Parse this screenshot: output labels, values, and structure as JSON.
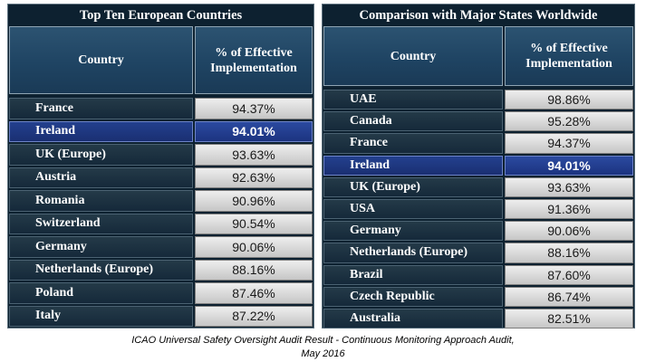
{
  "chart_data": [
    {
      "type": "table",
      "title": "Top Ten European Countries",
      "columns": [
        "Country",
        "% of Effective Implementation"
      ],
      "rows": [
        {
          "country": "France",
          "value": "94.37%"
        },
        {
          "country": "Ireland",
          "value": "94.01%",
          "highlight": true
        },
        {
          "country": "UK (Europe)",
          "value": "93.63%"
        },
        {
          "country": "Austria",
          "value": "92.63%"
        },
        {
          "country": "Romania",
          "value": "90.96%"
        },
        {
          "country": "Switzerland",
          "value": "90.54%"
        },
        {
          "country": "Germany",
          "value": "90.06%"
        },
        {
          "country": "Netherlands (Europe)",
          "value": "88.16%"
        },
        {
          "country": "Poland",
          "value": "87.46%"
        },
        {
          "country": "Italy",
          "value": "87.22%"
        }
      ],
      "highlight_color": "#1f3a8a"
    },
    {
      "type": "table",
      "title": "Comparison with Major States Worldwide",
      "columns": [
        "Country",
        "% of Effective Implementation"
      ],
      "rows": [
        {
          "country": "UAE",
          "value": "98.86%"
        },
        {
          "country": "Canada",
          "value": "95.28%"
        },
        {
          "country": "France",
          "value": "94.37%"
        },
        {
          "country": "Ireland",
          "value": "94.01%",
          "highlight": true
        },
        {
          "country": "UK (Europe)",
          "value": "93.63%"
        },
        {
          "country": "USA",
          "value": "91.36%"
        },
        {
          "country": "Germany",
          "value": "90.06%"
        },
        {
          "country": "Netherlands (Europe)",
          "value": "88.16%"
        },
        {
          "country": "Brazil",
          "value": "87.60%"
        },
        {
          "country": "Czech Republic",
          "value": "86.74%"
        },
        {
          "country": "Australia",
          "value": "82.51%"
        }
      ],
      "highlight_color": "#1f3a8a"
    }
  ],
  "caption": {
    "line1": "ICAO Universal Safety Oversight Audit Result - Continuous Monitoring Approach Audit,",
    "line2": "May 2016"
  },
  "colors": {
    "panel_bg": "#0d2130",
    "header_bg": "#1f4463",
    "value_bg": "#d9d9d9",
    "highlight": "#1f3a8a"
  }
}
